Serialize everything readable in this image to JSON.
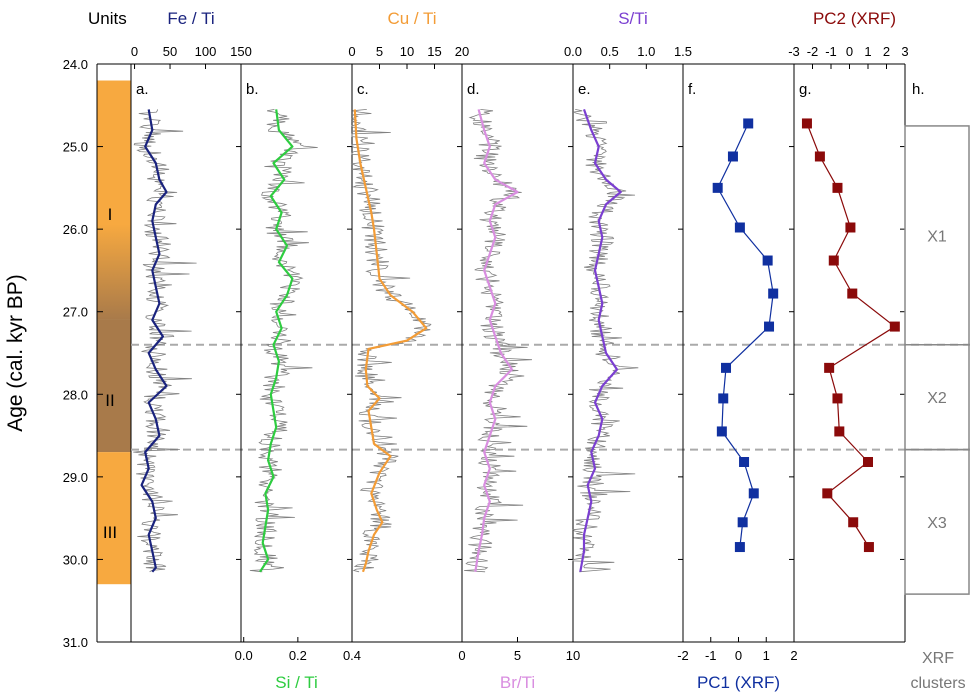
{
  "chart_data": {
    "type": "line",
    "y_axis": {
      "label": "Age (cal. kyr BP)",
      "range": [
        24.0,
        31.0
      ],
      "ticks": [
        "24.0",
        "25.0",
        "26.0",
        "27.0",
        "28.0",
        "29.0",
        "30.0",
        "31.0"
      ]
    },
    "units_label": "Units",
    "zones": [
      {
        "name": "I",
        "from": 24.2,
        "to": 27.1,
        "color": "#f7a940"
      },
      {
        "name": "II",
        "from": 27.1,
        "to": 28.7,
        "color": "#a87a4a"
      },
      {
        "name": "III",
        "from": 28.7,
        "to": 30.3,
        "color": "#f7a940"
      }
    ],
    "boundaries": [
      27.4,
      28.67
    ],
    "panels": [
      {
        "letter": "a.",
        "name": "Fe / Ti",
        "axis": "top",
        "ticks": [
          "0",
          "50",
          "100",
          "150"
        ],
        "range": [
          -5,
          150
        ],
        "color": "#1a237e",
        "smooth": [
          [
            24.55,
            20
          ],
          [
            24.8,
            25
          ],
          [
            25.0,
            15
          ],
          [
            25.2,
            30
          ],
          [
            25.4,
            35
          ],
          [
            25.55,
            45
          ],
          [
            25.7,
            30
          ],
          [
            25.9,
            25
          ],
          [
            26.1,
            30
          ],
          [
            26.3,
            35
          ],
          [
            26.5,
            25
          ],
          [
            26.7,
            30
          ],
          [
            26.9,
            35
          ],
          [
            27.1,
            25
          ],
          [
            27.3,
            40
          ],
          [
            27.5,
            20
          ],
          [
            27.7,
            30
          ],
          [
            27.9,
            45
          ],
          [
            28.1,
            20
          ],
          [
            28.3,
            30
          ],
          [
            28.5,
            35
          ],
          [
            28.7,
            15
          ],
          [
            28.9,
            20
          ],
          [
            29.1,
            10
          ],
          [
            29.3,
            25
          ],
          [
            29.5,
            30
          ],
          [
            29.7,
            20
          ],
          [
            29.9,
            25
          ],
          [
            30.1,
            30
          ],
          [
            30.15,
            25
          ]
        ]
      },
      {
        "letter": "b.",
        "name": "Si / Ti",
        "axis": "bottom",
        "ticks": [
          "0.0",
          "0.2",
          "0.4"
        ],
        "range": [
          -0.01,
          0.4
        ],
        "color": "#2ecc40",
        "smooth": [
          [
            24.55,
            0.12
          ],
          [
            24.8,
            0.13
          ],
          [
            25.0,
            0.18
          ],
          [
            25.2,
            0.11
          ],
          [
            25.4,
            0.15
          ],
          [
            25.6,
            0.1
          ],
          [
            25.8,
            0.14
          ],
          [
            26.0,
            0.12
          ],
          [
            26.2,
            0.16
          ],
          [
            26.4,
            0.13
          ],
          [
            26.6,
            0.18
          ],
          [
            26.8,
            0.16
          ],
          [
            27.0,
            0.12
          ],
          [
            27.2,
            0.14
          ],
          [
            27.4,
            0.11
          ],
          [
            27.6,
            0.13
          ],
          [
            27.8,
            0.12
          ],
          [
            28.0,
            0.1
          ],
          [
            28.2,
            0.11
          ],
          [
            28.4,
            0.12
          ],
          [
            28.6,
            0.1
          ],
          [
            28.8,
            0.09
          ],
          [
            29.0,
            0.11
          ],
          [
            29.2,
            0.08
          ],
          [
            29.4,
            0.09
          ],
          [
            29.6,
            0.08
          ],
          [
            29.8,
            0.07
          ],
          [
            30.0,
            0.09
          ],
          [
            30.15,
            0.06
          ]
        ]
      },
      {
        "letter": "c.",
        "name": "Cu / Ti",
        "axis": "top",
        "ticks": [
          "0",
          "5",
          "10",
          "15",
          "20"
        ],
        "range": [
          0,
          20
        ],
        "color": "#f39c36",
        "smooth": [
          [
            24.55,
            0.5
          ],
          [
            24.9,
            0.8
          ],
          [
            25.2,
            1.5
          ],
          [
            25.5,
            2.5
          ],
          [
            25.8,
            3.5
          ],
          [
            26.0,
            4.0
          ],
          [
            26.3,
            4.5
          ],
          [
            26.6,
            5.0
          ],
          [
            26.8,
            7.0
          ],
          [
            27.0,
            11.0
          ],
          [
            27.2,
            13.5
          ],
          [
            27.35,
            10.0
          ],
          [
            27.45,
            3.0
          ],
          [
            27.7,
            2.5
          ],
          [
            27.9,
            2.8
          ],
          [
            28.05,
            5.0
          ],
          [
            28.2,
            3.0
          ],
          [
            28.4,
            3.5
          ],
          [
            28.6,
            4.0
          ],
          [
            28.75,
            7.0
          ],
          [
            28.95,
            5.0
          ],
          [
            29.2,
            3.5
          ],
          [
            29.4,
            4.5
          ],
          [
            29.55,
            5.5
          ],
          [
            29.7,
            4.0
          ],
          [
            29.9,
            3.0
          ],
          [
            30.05,
            2.5
          ],
          [
            30.15,
            2.0
          ]
        ]
      },
      {
        "letter": "d.",
        "name": "Br/Ti",
        "axis": "bottom",
        "ticks": [
          "0",
          "5",
          "10"
        ],
        "range": [
          0,
          10
        ],
        "color": "#d98ee0",
        "smooth": [
          [
            24.55,
            1.5
          ],
          [
            24.8,
            2.0
          ],
          [
            25.0,
            2.5
          ],
          [
            25.2,
            2.0
          ],
          [
            25.4,
            3.0
          ],
          [
            25.55,
            5.0
          ],
          [
            25.7,
            3.0
          ],
          [
            25.9,
            2.5
          ],
          [
            26.1,
            3.0
          ],
          [
            26.3,
            2.5
          ],
          [
            26.5,
            2.0
          ],
          [
            26.7,
            2.5
          ],
          [
            26.9,
            3.0
          ],
          [
            27.1,
            2.5
          ],
          [
            27.3,
            3.0
          ],
          [
            27.5,
            3.5
          ],
          [
            27.7,
            4.5
          ],
          [
            27.9,
            3.0
          ],
          [
            28.1,
            2.5
          ],
          [
            28.3,
            3.0
          ],
          [
            28.5,
            2.5
          ],
          [
            28.7,
            2.0
          ],
          [
            28.9,
            2.5
          ],
          [
            29.1,
            2.0
          ],
          [
            29.3,
            2.5
          ],
          [
            29.5,
            2.0
          ],
          [
            29.7,
            1.8
          ],
          [
            29.9,
            1.5
          ],
          [
            30.15,
            1.2
          ]
        ]
      },
      {
        "letter": "e.",
        "name": "S/Ti",
        "axis": "top",
        "ticks": [
          "0.0",
          "0.5",
          "1.0",
          "1.5"
        ],
        "range": [
          0,
          1.5
        ],
        "color": "#7b3fd1",
        "smooth": [
          [
            24.55,
            0.15
          ],
          [
            24.8,
            0.25
          ],
          [
            25.0,
            0.35
          ],
          [
            25.2,
            0.3
          ],
          [
            25.4,
            0.45
          ],
          [
            25.55,
            0.65
          ],
          [
            25.7,
            0.45
          ],
          [
            25.9,
            0.35
          ],
          [
            26.1,
            0.4
          ],
          [
            26.3,
            0.35
          ],
          [
            26.5,
            0.3
          ],
          [
            26.7,
            0.35
          ],
          [
            26.9,
            0.4
          ],
          [
            27.1,
            0.35
          ],
          [
            27.3,
            0.4
          ],
          [
            27.5,
            0.45
          ],
          [
            27.7,
            0.6
          ],
          [
            27.9,
            0.4
          ],
          [
            28.1,
            0.3
          ],
          [
            28.3,
            0.4
          ],
          [
            28.5,
            0.35
          ],
          [
            28.7,
            0.25
          ],
          [
            28.9,
            0.3
          ],
          [
            29.1,
            0.2
          ],
          [
            29.3,
            0.25
          ],
          [
            29.5,
            0.2
          ],
          [
            29.7,
            0.15
          ],
          [
            29.9,
            0.15
          ],
          [
            30.15,
            0.1
          ]
        ]
      },
      {
        "letter": "f.",
        "name": "PC1 (XRF)",
        "axis": "bottom",
        "ticks": [
          "-2",
          "-1",
          "0",
          "1",
          "2"
        ],
        "range": [
          -2,
          2
        ],
        "color": "#1030a0",
        "points": [
          [
            24.72,
            0.35
          ],
          [
            25.12,
            -0.2
          ],
          [
            25.5,
            -0.75
          ],
          [
            25.98,
            0.05
          ],
          [
            26.38,
            1.05
          ],
          [
            26.78,
            1.25
          ],
          [
            27.18,
            1.1
          ],
          [
            27.68,
            -0.45
          ],
          [
            28.05,
            -0.55
          ],
          [
            28.45,
            -0.6
          ],
          [
            28.82,
            0.2
          ],
          [
            29.2,
            0.55
          ],
          [
            29.55,
            0.15
          ],
          [
            29.85,
            0.05
          ]
        ]
      },
      {
        "letter": "g.",
        "name": "PC2 (XRF)",
        "axis": "top",
        "ticks": [
          "-3",
          "-2",
          "-1",
          "0",
          "1",
          "2",
          "3"
        ],
        "range": [
          -3,
          3
        ],
        "color": "#8b0a0a",
        "points": [
          [
            24.72,
            -2.3
          ],
          [
            25.12,
            -1.6
          ],
          [
            25.5,
            -0.65
          ],
          [
            25.98,
            0.05
          ],
          [
            26.38,
            -0.85
          ],
          [
            26.78,
            0.15
          ],
          [
            27.18,
            2.45
          ],
          [
            27.68,
            -1.1
          ],
          [
            28.05,
            -0.65
          ],
          [
            28.45,
            -0.55
          ],
          [
            28.82,
            1.0
          ],
          [
            29.2,
            -1.2
          ],
          [
            29.55,
            0.2
          ],
          [
            29.85,
            1.05
          ]
        ]
      }
    ],
    "clusters": {
      "letter": "h.",
      "label": "XRF clusters",
      "items": [
        {
          "name": "X1",
          "from": 24.75,
          "to": 27.4
        },
        {
          "name": "X2",
          "from": 27.4,
          "to": 28.67
        },
        {
          "name": "X3",
          "from": 28.67,
          "to": 30.42
        }
      ]
    }
  }
}
